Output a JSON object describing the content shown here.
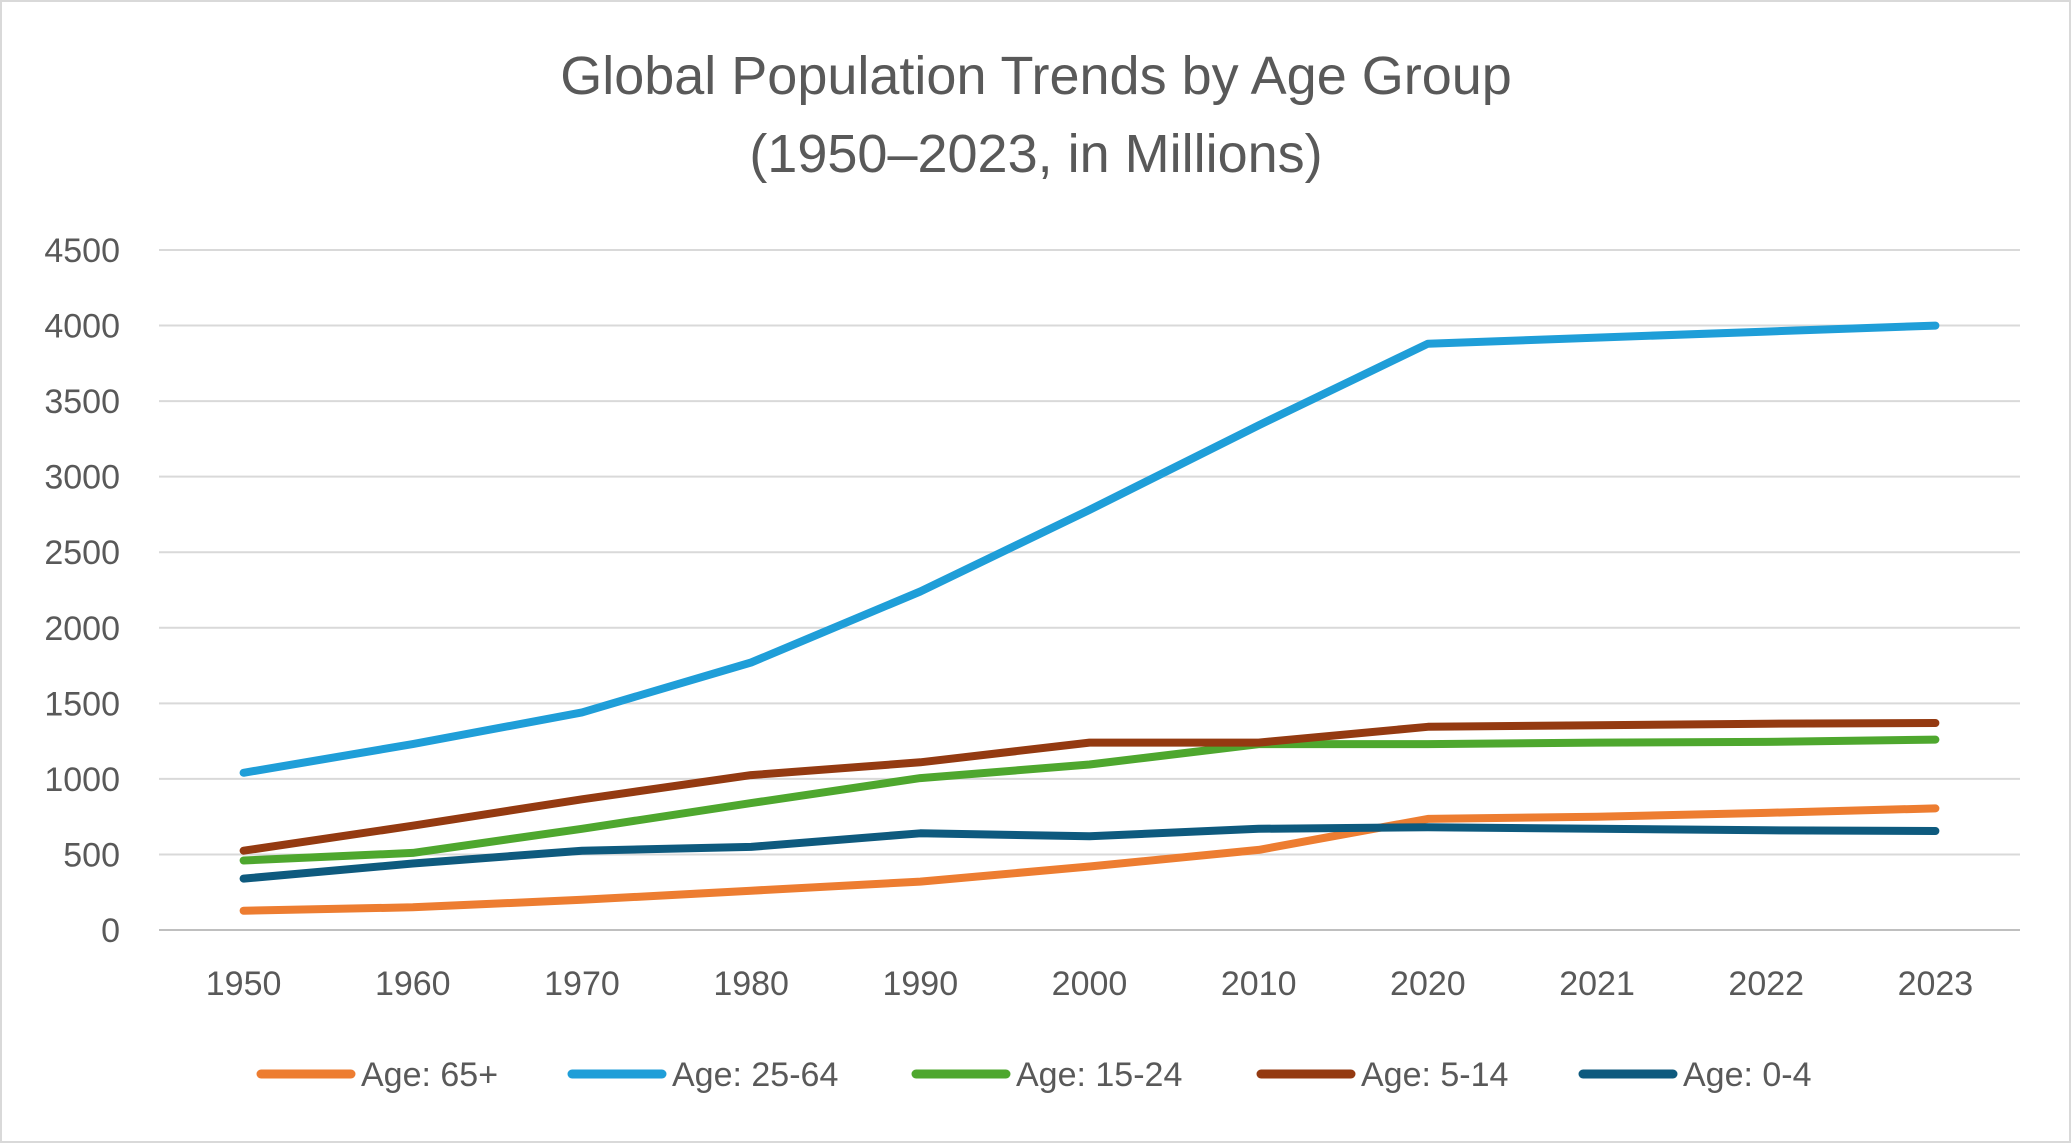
{
  "chart_data": {
    "type": "line",
    "title_lines": [
      "Global Population Trends by Age Group",
      "(1950–2023, in Millions)"
    ],
    "xlabel": "",
    "ylabel": "",
    "categories": [
      "1950",
      "1960",
      "1970",
      "1980",
      "1990",
      "2000",
      "2010",
      "2020",
      "2021",
      "2022",
      "2023"
    ],
    "ylim": [
      0,
      4500
    ],
    "yticks": [
      0,
      500,
      1000,
      1500,
      2000,
      2500,
      3000,
      3500,
      4000,
      4500
    ],
    "grid": true,
    "legend_position": "bottom",
    "series": [
      {
        "name": "Age: 65+",
        "color": "#ED7D31",
        "values": [
          128,
          150,
          200,
          260,
          320,
          420,
          530,
          735,
          750,
          775,
          805
        ]
      },
      {
        "name": "Age: 25-64",
        "color": "#1F9ED8",
        "values": [
          1040,
          1230,
          1440,
          1770,
          2240,
          2780,
          3340,
          3880,
          3920,
          3960,
          4000
        ]
      },
      {
        "name": "Age: 15-24",
        "color": "#4EA72E",
        "values": [
          460,
          510,
          670,
          840,
          1005,
          1095,
          1230,
          1230,
          1240,
          1245,
          1260
        ]
      },
      {
        "name": "Age: 5-14",
        "color": "#943A11",
        "values": [
          525,
          690,
          865,
          1025,
          1110,
          1240,
          1240,
          1345,
          1355,
          1365,
          1370
        ]
      },
      {
        "name": "Age: 0-4",
        "color": "#0E5A7E",
        "values": [
          340,
          440,
          525,
          550,
          640,
          620,
          670,
          680,
          670,
          660,
          655
        ]
      }
    ]
  }
}
